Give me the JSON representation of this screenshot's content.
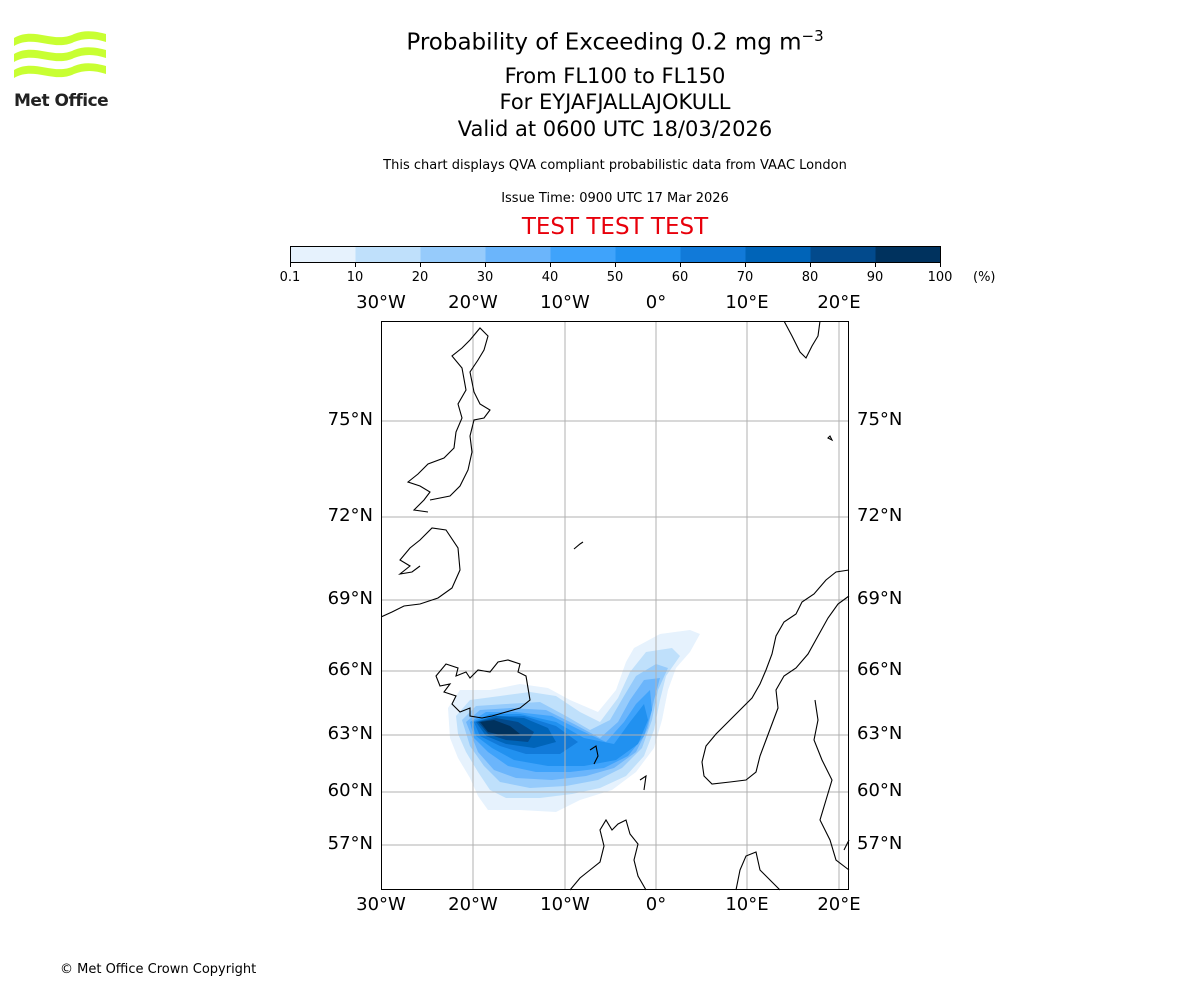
{
  "logo": {
    "text": "Met Office",
    "color": "#c8ff32"
  },
  "title": {
    "line1": "Probability of Exceeding 0.2 mg m",
    "line1_sup": "−3",
    "line2": "From FL100 to FL150",
    "line3": "For EYJAFJALLAJOKULL",
    "line4": "Valid at 0600 UTC 18/03/2026"
  },
  "subtitle": "This chart displays QVA compliant probabilistic data from VAAC London",
  "issue_time": "Issue Time: 0900 UTC 17 Mar 2026",
  "test_banner": "TEST TEST TEST",
  "test_color": "#e8000b",
  "footer": "© Met Office Crown Copyright",
  "chart_data": {
    "type": "heatmap",
    "title": "Probability of Exceeding 0.2 mg m−3",
    "colorbar": {
      "unit_label": "(%)",
      "ticks": [
        "0.1",
        "10",
        "20",
        "30",
        "40",
        "50",
        "60",
        "70",
        "80",
        "90",
        "100"
      ],
      "colors": [
        "#e6f2fd",
        "#bfe0fb",
        "#96cbfb",
        "#6bb5fb",
        "#3fa3fb",
        "#2191f0",
        "#117ad9",
        "#0064b8",
        "#024a8c",
        "#00325e"
      ]
    },
    "lon_ticks_top": [
      "30°W",
      "20°W",
      "10°W",
      "0°",
      "10°E",
      "20°E"
    ],
    "lon_ticks_bottom": [
      "30°W",
      "20°W",
      "10°W",
      "0°",
      "10°E",
      "20°E"
    ],
    "lat_ticks": [
      "75°N",
      "72°N",
      "69°N",
      "66°N",
      "63°N",
      "60°N",
      "57°N"
    ],
    "extent": {
      "lon": [
        -30,
        21
      ],
      "lat": [
        54.5,
        78
      ]
    },
    "grid": true
  }
}
